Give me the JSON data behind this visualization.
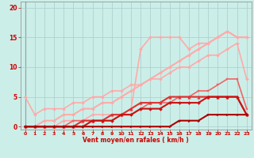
{
  "background_color": "#cceee8",
  "grid_color": "#aacccc",
  "xlabel": "Vent moyen/en rafales ( km/h )",
  "xlim": [
    -0.5,
    23.5
  ],
  "ylim": [
    -0.5,
    21
  ],
  "yticks": [
    0,
    5,
    10,
    15,
    20
  ],
  "xticks": [
    0,
    1,
    2,
    3,
    4,
    5,
    6,
    7,
    8,
    9,
    10,
    11,
    12,
    13,
    14,
    15,
    16,
    17,
    18,
    19,
    20,
    21,
    22,
    23
  ],
  "lines": [
    {
      "x": [
        0,
        1,
        2,
        3,
        4,
        5,
        6,
        7,
        8,
        9,
        10,
        11,
        12,
        13,
        14,
        15,
        16,
        17,
        18,
        19,
        20,
        21,
        22,
        23
      ],
      "y": [
        5,
        2,
        3,
        3,
        3,
        4,
        4,
        5,
        5,
        6,
        6,
        7,
        7,
        8,
        8,
        9,
        10,
        10,
        11,
        12,
        12,
        13,
        14,
        8
      ],
      "color": "#ffaaaa",
      "lw": 1.2,
      "marker": "D",
      "ms": 2.0,
      "zorder": 2
    },
    {
      "x": [
        0,
        1,
        2,
        3,
        4,
        5,
        6,
        7,
        8,
        9,
        10,
        11,
        12,
        13,
        14,
        15,
        16,
        17,
        18,
        19,
        20,
        21,
        22,
        23
      ],
      "y": [
        0,
        0,
        1,
        1,
        2,
        2,
        3,
        3,
        4,
        4,
        5,
        6,
        7,
        8,
        9,
        10,
        11,
        12,
        13,
        14,
        15,
        16,
        15,
        15
      ],
      "color": "#ffaaaa",
      "lw": 1.5,
      "marker": "D",
      "ms": 2.0,
      "zorder": 2
    },
    {
      "x": [
        0,
        1,
        2,
        3,
        4,
        5,
        6,
        7,
        8,
        9,
        10,
        11,
        12,
        13,
        14,
        15,
        16,
        17,
        18,
        19,
        20,
        21,
        22,
        23
      ],
      "y": [
        0,
        0,
        0,
        0,
        1,
        1,
        1,
        2,
        2,
        2,
        2,
        3,
        13,
        15,
        15,
        15,
        15,
        13,
        14,
        14,
        15,
        16,
        15,
        15
      ],
      "color": "#ffaaaa",
      "lw": 1.2,
      "marker": "D",
      "ms": 2.0,
      "zorder": 2
    },
    {
      "x": [
        0,
        1,
        2,
        3,
        4,
        5,
        6,
        7,
        8,
        9,
        10,
        11,
        12,
        13,
        14,
        15,
        16,
        17,
        18,
        19,
        20,
        21,
        22,
        23
      ],
      "y": [
        0,
        0,
        0,
        0,
        0,
        1,
        1,
        1,
        1,
        1,
        2,
        2,
        3,
        4,
        4,
        4,
        5,
        5,
        6,
        6,
        7,
        8,
        8,
        3
      ],
      "color": "#ee6666",
      "lw": 1.2,
      "marker": "s",
      "ms": 2.0,
      "zorder": 3
    },
    {
      "x": [
        0,
        1,
        2,
        3,
        4,
        5,
        6,
        7,
        8,
        9,
        10,
        11,
        12,
        13,
        14,
        15,
        16,
        17,
        18,
        19,
        20,
        21,
        22,
        23
      ],
      "y": [
        0,
        0,
        0,
        0,
        0,
        0,
        1,
        1,
        1,
        2,
        2,
        3,
        4,
        4,
        4,
        5,
        5,
        5,
        5,
        5,
        5,
        5,
        5,
        2
      ],
      "color": "#dd3333",
      "lw": 1.5,
      "marker": "^",
      "ms": 2.5,
      "zorder": 4
    },
    {
      "x": [
        0,
        1,
        2,
        3,
        4,
        5,
        6,
        7,
        8,
        9,
        10,
        11,
        12,
        13,
        14,
        15,
        16,
        17,
        18,
        19,
        20,
        21,
        22,
        23
      ],
      "y": [
        0,
        0,
        0,
        0,
        0,
        0,
        0,
        1,
        1,
        1,
        2,
        2,
        3,
        3,
        3,
        4,
        4,
        4,
        4,
        5,
        5,
        5,
        5,
        2
      ],
      "color": "#cc1111",
      "lw": 1.5,
      "marker": "D",
      "ms": 2.0,
      "zorder": 4
    },
    {
      "x": [
        0,
        1,
        2,
        3,
        4,
        5,
        6,
        7,
        8,
        9,
        10,
        11,
        12,
        13,
        14,
        15,
        16,
        17,
        18,
        19,
        20,
        21,
        22,
        23
      ],
      "y": [
        0,
        0,
        0,
        0,
        0,
        0,
        0,
        0,
        0,
        0,
        0,
        0,
        0,
        0,
        0,
        0,
        1,
        1,
        1,
        2,
        2,
        2,
        2,
        2
      ],
      "color": "#aa0000",
      "lw": 1.5,
      "marker": ">",
      "ms": 2.0,
      "zorder": 5
    }
  ]
}
